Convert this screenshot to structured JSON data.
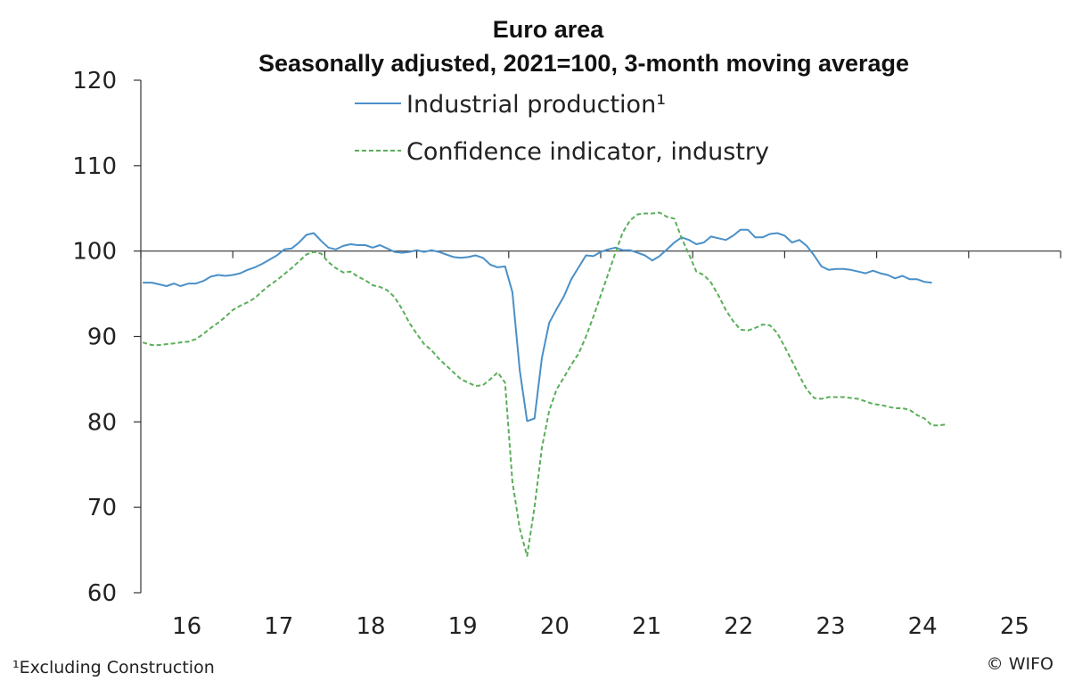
{
  "chart_data": {
    "type": "line",
    "title": "Euro area",
    "subtitle": "Seasonally adjusted, 2021=100, 3-month moving average",
    "ylim": [
      60,
      120
    ],
    "yticks": [
      60,
      70,
      80,
      90,
      100,
      110,
      120
    ],
    "x_start": 2015.5,
    "x_end": 2025.5,
    "xtick_years": [
      "16",
      "17",
      "18",
      "19",
      "20",
      "21",
      "22",
      "23",
      "24",
      "25"
    ],
    "reference_line": 100,
    "series": [
      {
        "name": "Industrial production¹",
        "color": "#4a90c8",
        "style": "solid",
        "points": [
          [
            2015.52,
            96.3
          ],
          [
            2015.62,
            96.3
          ],
          [
            2015.7,
            96.1
          ],
          [
            2015.78,
            95.9
          ],
          [
            2015.86,
            96.2
          ],
          [
            2015.93,
            95.9
          ],
          [
            2016.02,
            96.2
          ],
          [
            2016.1,
            96.2
          ],
          [
            2016.18,
            96.5
          ],
          [
            2016.26,
            97.0
          ],
          [
            2016.34,
            97.2
          ],
          [
            2016.42,
            97.1
          ],
          [
            2016.5,
            97.2
          ],
          [
            2016.58,
            97.4
          ],
          [
            2016.66,
            97.8
          ],
          [
            2016.74,
            98.1
          ],
          [
            2016.82,
            98.5
          ],
          [
            2016.9,
            99.0
          ],
          [
            2016.98,
            99.5
          ],
          [
            2017.06,
            100.2
          ],
          [
            2017.14,
            100.3
          ],
          [
            2017.22,
            101.0
          ],
          [
            2017.3,
            101.9
          ],
          [
            2017.38,
            102.1
          ],
          [
            2017.46,
            101.2
          ],
          [
            2017.54,
            100.4
          ],
          [
            2017.62,
            100.2
          ],
          [
            2017.7,
            100.6
          ],
          [
            2017.78,
            100.8
          ],
          [
            2017.86,
            100.7
          ],
          [
            2017.94,
            100.7
          ],
          [
            2018.02,
            100.4
          ],
          [
            2018.1,
            100.7
          ],
          [
            2018.18,
            100.3
          ],
          [
            2018.26,
            99.9
          ],
          [
            2018.34,
            99.8
          ],
          [
            2018.42,
            99.9
          ],
          [
            2018.5,
            100.1
          ],
          [
            2018.58,
            99.9
          ],
          [
            2018.66,
            100.1
          ],
          [
            2018.74,
            99.9
          ],
          [
            2018.82,
            99.6
          ],
          [
            2018.9,
            99.3
          ],
          [
            2018.98,
            99.2
          ],
          [
            2019.06,
            99.3
          ],
          [
            2019.14,
            99.5
          ],
          [
            2019.22,
            99.2
          ],
          [
            2019.3,
            98.4
          ],
          [
            2019.38,
            98.1
          ],
          [
            2019.46,
            98.2
          ],
          [
            2019.54,
            95.2
          ],
          [
            2019.62,
            86.0
          ],
          [
            2019.7,
            80.1
          ],
          [
            2019.78,
            80.4
          ],
          [
            2019.86,
            87.5
          ],
          [
            2019.94,
            91.6
          ],
          [
            2020.02,
            93.2
          ],
          [
            2020.1,
            94.7
          ],
          [
            2020.18,
            96.7
          ],
          [
            2020.26,
            98.1
          ],
          [
            2020.34,
            99.5
          ],
          [
            2020.42,
            99.4
          ],
          [
            2020.5,
            99.9
          ],
          [
            2020.58,
            100.2
          ],
          [
            2020.66,
            100.4
          ],
          [
            2020.74,
            100.1
          ],
          [
            2020.82,
            100.1
          ],
          [
            2020.9,
            99.8
          ],
          [
            2020.98,
            99.5
          ],
          [
            2021.06,
            98.9
          ],
          [
            2021.14,
            99.4
          ],
          [
            2021.22,
            100.2
          ],
          [
            2021.3,
            101.0
          ],
          [
            2021.38,
            101.6
          ],
          [
            2021.46,
            101.3
          ],
          [
            2021.54,
            100.8
          ],
          [
            2021.62,
            101.0
          ],
          [
            2021.7,
            101.7
          ],
          [
            2021.78,
            101.5
          ],
          [
            2021.86,
            101.3
          ],
          [
            2021.94,
            101.8
          ],
          [
            2022.02,
            102.5
          ],
          [
            2022.1,
            102.5
          ],
          [
            2022.18,
            101.6
          ],
          [
            2022.26,
            101.6
          ],
          [
            2022.34,
            102.0
          ],
          [
            2022.42,
            102.1
          ],
          [
            2022.5,
            101.8
          ],
          [
            2022.58,
            101.0
          ],
          [
            2022.66,
            101.3
          ],
          [
            2022.74,
            100.6
          ],
          [
            2022.82,
            99.5
          ],
          [
            2022.9,
            98.2
          ],
          [
            2022.98,
            97.8
          ],
          [
            2023.06,
            97.9
          ],
          [
            2023.14,
            97.9
          ],
          [
            2023.22,
            97.8
          ],
          [
            2023.3,
            97.6
          ],
          [
            2023.38,
            97.4
          ],
          [
            2023.46,
            97.7
          ],
          [
            2023.54,
            97.4
          ],
          [
            2023.62,
            97.2
          ],
          [
            2023.7,
            96.8
          ],
          [
            2023.78,
            97.1
          ],
          [
            2023.86,
            96.7
          ],
          [
            2023.94,
            96.7
          ],
          [
            2024.02,
            96.4
          ],
          [
            2024.1,
            96.3
          ]
        ]
      },
      {
        "name": "Confidence indicator, industry",
        "color": "#5aae5a",
        "style": "dashed",
        "points": [
          [
            2015.52,
            89.3
          ],
          [
            2015.62,
            89.0
          ],
          [
            2015.7,
            89.0
          ],
          [
            2015.78,
            89.1
          ],
          [
            2015.86,
            89.2
          ],
          [
            2015.93,
            89.3
          ],
          [
            2016.02,
            89.4
          ],
          [
            2016.1,
            89.7
          ],
          [
            2016.18,
            90.3
          ],
          [
            2016.26,
            91.0
          ],
          [
            2016.34,
            91.6
          ],
          [
            2016.42,
            92.3
          ],
          [
            2016.5,
            93.1
          ],
          [
            2016.58,
            93.6
          ],
          [
            2016.66,
            94.0
          ],
          [
            2016.74,
            94.5
          ],
          [
            2016.82,
            95.3
          ],
          [
            2016.9,
            96.0
          ],
          [
            2016.98,
            96.6
          ],
          [
            2017.06,
            97.3
          ],
          [
            2017.14,
            98.0
          ],
          [
            2017.22,
            98.8
          ],
          [
            2017.3,
            99.6
          ],
          [
            2017.38,
            99.9
          ],
          [
            2017.46,
            99.7
          ],
          [
            2017.54,
            98.7
          ],
          [
            2017.62,
            98.0
          ],
          [
            2017.7,
            97.5
          ],
          [
            2017.78,
            97.6
          ],
          [
            2017.86,
            97.0
          ],
          [
            2017.94,
            96.6
          ],
          [
            2018.02,
            96.0
          ],
          [
            2018.1,
            95.8
          ],
          [
            2018.18,
            95.4
          ],
          [
            2018.26,
            94.6
          ],
          [
            2018.34,
            93.2
          ],
          [
            2018.42,
            91.6
          ],
          [
            2018.5,
            90.3
          ],
          [
            2018.58,
            89.1
          ],
          [
            2018.66,
            88.4
          ],
          [
            2018.74,
            87.4
          ],
          [
            2018.82,
            86.6
          ],
          [
            2018.9,
            85.8
          ],
          [
            2018.98,
            85.0
          ],
          [
            2019.06,
            84.6
          ],
          [
            2019.14,
            84.2
          ],
          [
            2019.22,
            84.3
          ],
          [
            2019.3,
            85.0
          ],
          [
            2019.38,
            85.8
          ],
          [
            2019.46,
            84.6
          ],
          [
            2019.54,
            73.0
          ],
          [
            2019.62,
            67.5
          ],
          [
            2019.7,
            64.3
          ],
          [
            2019.78,
            70.0
          ],
          [
            2019.86,
            77.0
          ],
          [
            2019.94,
            81.3
          ],
          [
            2020.02,
            83.8
          ],
          [
            2020.1,
            85.2
          ],
          [
            2020.18,
            86.7
          ],
          [
            2020.26,
            88.0
          ],
          [
            2020.34,
            90.0
          ],
          [
            2020.42,
            92.3
          ],
          [
            2020.5,
            94.8
          ],
          [
            2020.58,
            97.3
          ],
          [
            2020.66,
            99.8
          ],
          [
            2020.74,
            102.2
          ],
          [
            2020.82,
            103.6
          ],
          [
            2020.9,
            104.3
          ],
          [
            2020.98,
            104.4
          ],
          [
            2021.06,
            104.4
          ],
          [
            2021.14,
            104.5
          ],
          [
            2021.22,
            104.0
          ],
          [
            2021.3,
            103.8
          ],
          [
            2021.38,
            101.5
          ],
          [
            2021.46,
            99.6
          ],
          [
            2021.54,
            97.6
          ],
          [
            2021.62,
            97.2
          ],
          [
            2021.7,
            96.3
          ],
          [
            2021.78,
            94.8
          ],
          [
            2021.86,
            93.1
          ],
          [
            2021.94,
            91.8
          ],
          [
            2022.02,
            90.8
          ],
          [
            2022.1,
            90.7
          ],
          [
            2022.18,
            91.0
          ],
          [
            2022.26,
            91.4
          ],
          [
            2022.34,
            91.3
          ],
          [
            2022.42,
            90.4
          ],
          [
            2022.5,
            88.8
          ],
          [
            2022.58,
            87.1
          ],
          [
            2022.66,
            85.4
          ],
          [
            2022.74,
            83.8
          ],
          [
            2022.82,
            82.8
          ],
          [
            2022.9,
            82.7
          ],
          [
            2022.98,
            82.9
          ],
          [
            2023.06,
            82.9
          ],
          [
            2023.14,
            82.9
          ],
          [
            2023.22,
            82.8
          ],
          [
            2023.3,
            82.7
          ],
          [
            2023.38,
            82.4
          ],
          [
            2023.46,
            82.1
          ],
          [
            2023.54,
            82.0
          ],
          [
            2023.62,
            81.8
          ],
          [
            2023.7,
            81.6
          ],
          [
            2023.78,
            81.6
          ],
          [
            2023.86,
            81.4
          ],
          [
            2023.94,
            80.8
          ],
          [
            2024.02,
            80.4
          ],
          [
            2024.1,
            79.6
          ],
          [
            2024.18,
            79.6
          ],
          [
            2024.26,
            79.7
          ]
        ]
      }
    ]
  },
  "footnote": "¹Excluding Construction",
  "source": "© WIFO"
}
